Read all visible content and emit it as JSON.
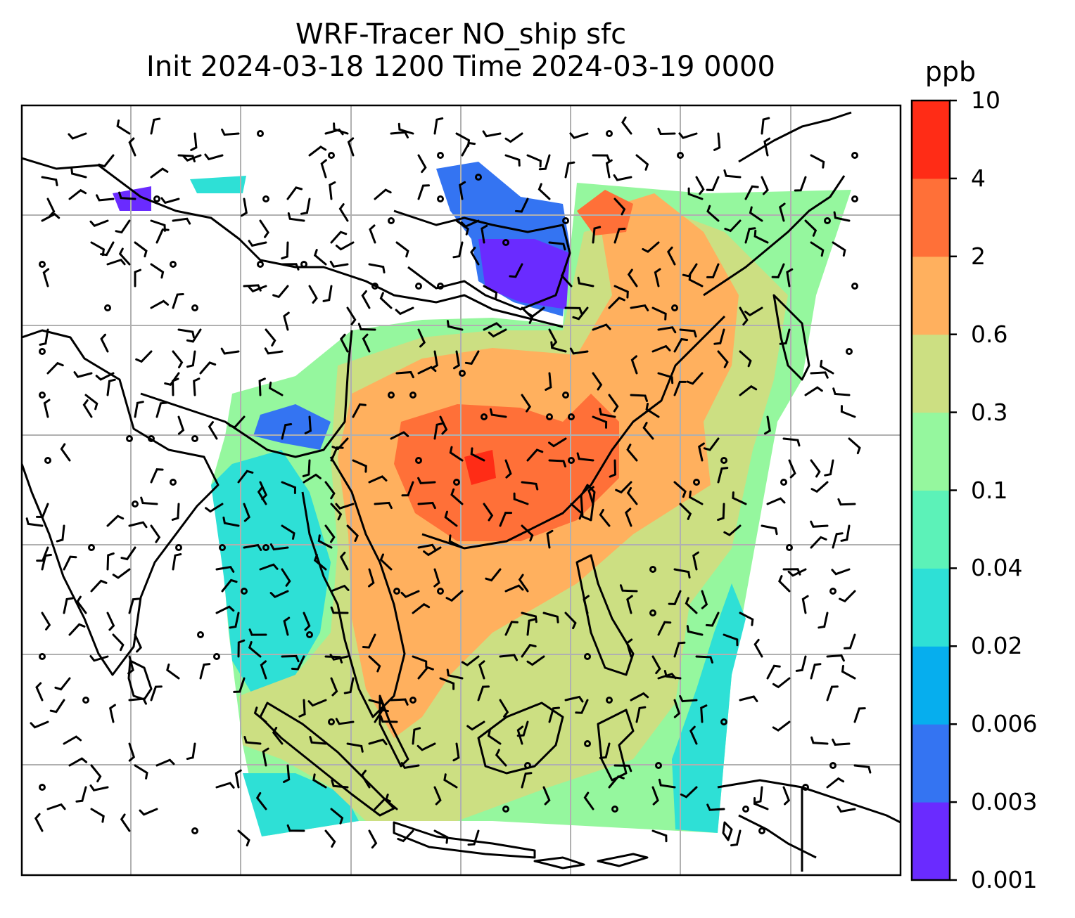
{
  "title": {
    "line1": "WRF-Tracer NO_ship sfc",
    "line2": "Init 2024-03-18 1200 Time 2024-03-19 0000"
  },
  "colorbar": {
    "unit": "ppb",
    "levels": [
      "0.001",
      "0.003",
      "0.006",
      "0.02",
      "0.04",
      "0.1",
      "0.3",
      "0.6",
      "2",
      "4",
      "10"
    ],
    "colors": [
      "#6a2bff",
      "#3474f2",
      "#06aeee",
      "#2ee0d6",
      "#5cf2b8",
      "#95f79e",
      "#ccdf82",
      "#ffb05e",
      "#ff7038",
      "#ff2c16"
    ]
  },
  "map_colors": {
    "frame": "#000000",
    "grid": "#b0b0b0",
    "coastline": "#000000",
    "barb": "#000000"
  },
  "map_features": [
    "gridlines",
    "coastlines",
    "filled-contour-tracer",
    "wind-barbs",
    "calm-circles"
  ]
}
